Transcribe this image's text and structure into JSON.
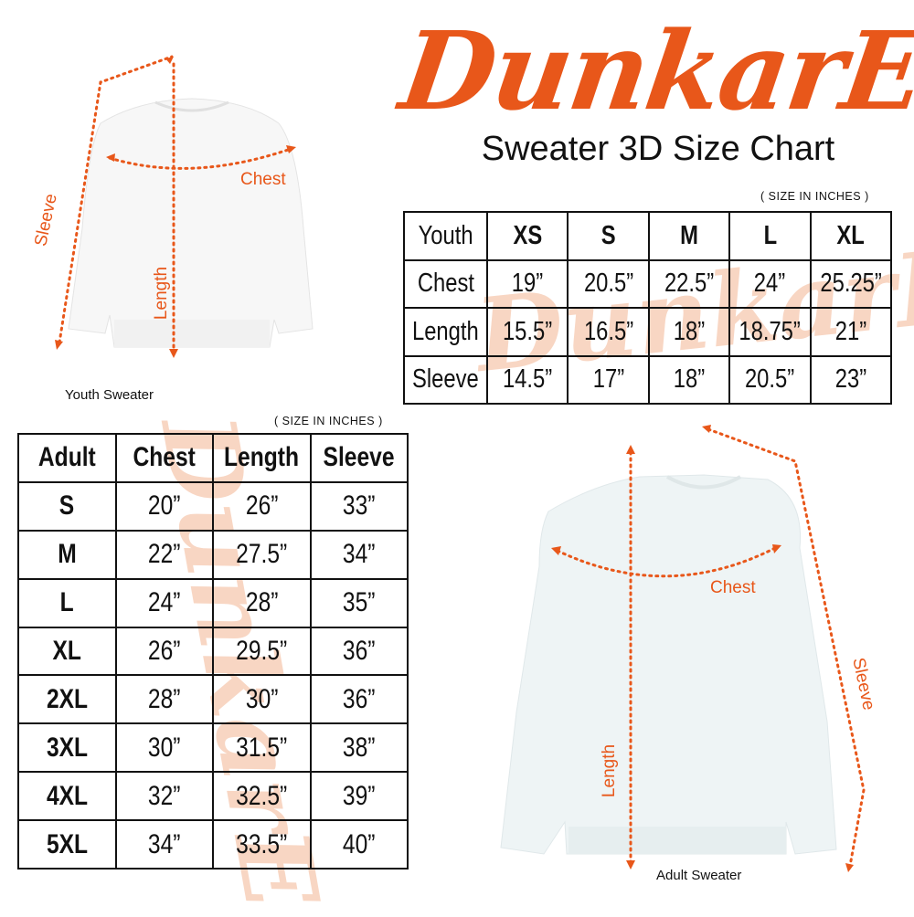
{
  "brand": {
    "logo_text": "DunkarE",
    "color": "#e8571a"
  },
  "title": "Sweater 3D Size Chart",
  "youth": {
    "units_note": "( SIZE IN INCHES )",
    "caption": "Youth Sweater",
    "diagram_labels": {
      "chest": "Chest",
      "sleeve": "Sleeve",
      "length": "Length"
    },
    "header": [
      "Youth",
      "XS",
      "S",
      "M",
      "L",
      "XL"
    ],
    "rows": [
      [
        "Chest",
        "19”",
        "20.5”",
        "22.5”",
        "24”",
        "25.25”"
      ],
      [
        "Length",
        "15.5”",
        "16.5”",
        "18”",
        "18.75”",
        "21”"
      ],
      [
        "Sleeve",
        "14.5”",
        "17”",
        "18”",
        "20.5”",
        "23”"
      ]
    ]
  },
  "adult": {
    "units_note": "( SIZE IN INCHES )",
    "caption": "Adult Sweater",
    "diagram_labels": {
      "chest": "Chest",
      "sleeve": "Sleeve",
      "length": "Length"
    },
    "header": [
      "Adult",
      "Chest",
      "Length",
      "Sleeve"
    ],
    "rows": [
      [
        "S",
        "20”",
        "26”",
        "33”"
      ],
      [
        "M",
        "22”",
        "27.5”",
        "34”"
      ],
      [
        "L",
        "24”",
        "28”",
        "35”"
      ],
      [
        "XL",
        "26”",
        "29.5”",
        "36”"
      ],
      [
        "2XL",
        "28”",
        "30”",
        "36”"
      ],
      [
        "3XL",
        "30”",
        "31.5”",
        "38”"
      ],
      [
        "4XL",
        "32”",
        "32.5”",
        "39”"
      ],
      [
        "5XL",
        "34”",
        "33.5”",
        "40”"
      ]
    ]
  }
}
